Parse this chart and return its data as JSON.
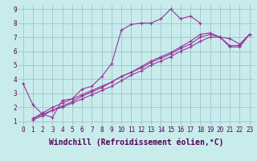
{
  "xlabel": "Windchill (Refroidissement éolien,°C)",
  "xlim": [
    -0.5,
    23.5
  ],
  "ylim": [
    0.7,
    9.3
  ],
  "xticks": [
    0,
    1,
    2,
    3,
    4,
    5,
    6,
    7,
    8,
    9,
    10,
    11,
    12,
    13,
    14,
    15,
    16,
    17,
    18,
    19,
    20,
    21,
    22,
    23
  ],
  "yticks": [
    1,
    2,
    3,
    4,
    5,
    6,
    7,
    8,
    9
  ],
  "bg_color": "#c8ecec",
  "line_color": "#993399",
  "grid_color": "#99bbcc",
  "series": [
    {
      "x": [
        0,
        1,
        2,
        3,
        4,
        5,
        6,
        7,
        8,
        9,
        10,
        11,
        12,
        13,
        14,
        15,
        16,
        17,
        18,
        19,
        20,
        21,
        22,
        23
      ],
      "y": [
        3.7,
        2.2,
        1.5,
        1.3,
        2.5,
        2.6,
        3.3,
        3.5,
        4.2,
        5.1,
        7.5,
        7.9,
        8.0,
        8.0,
        8.3,
        9.0,
        8.3,
        8.5,
        8.0,
        null,
        null,
        null,
        null,
        null
      ]
    },
    {
      "x": [
        1,
        2,
        3,
        4,
        5,
        6,
        7,
        8,
        9,
        10,
        11,
        12,
        13,
        14,
        15,
        16,
        17,
        18,
        19,
        20,
        21,
        22,
        23
      ],
      "y": [
        1.2,
        1.5,
        1.8,
        2.0,
        2.3,
        2.6,
        2.9,
        3.2,
        3.5,
        3.9,
        4.3,
        4.6,
        5.0,
        5.3,
        5.6,
        6.0,
        6.3,
        6.7,
        7.0,
        7.0,
        6.9,
        6.5,
        7.2
      ]
    },
    {
      "x": [
        1,
        2,
        3,
        4,
        5,
        6,
        7,
        8,
        9,
        10,
        11,
        12,
        13,
        14,
        15,
        16,
        17,
        18,
        19,
        20,
        21,
        22,
        23
      ],
      "y": [
        1.2,
        1.6,
        2.0,
        2.3,
        2.6,
        2.9,
        3.2,
        3.5,
        3.8,
        4.2,
        4.5,
        4.8,
        5.2,
        5.5,
        5.8,
        6.2,
        6.5,
        7.0,
        7.2,
        7.0,
        6.4,
        6.4,
        7.2
      ]
    },
    {
      "x": [
        1,
        2,
        3,
        4,
        5,
        6,
        7,
        8,
        9,
        10,
        11,
        12,
        13,
        14,
        15,
        16,
        17,
        18,
        19,
        20,
        21,
        22,
        23
      ],
      "y": [
        1.1,
        1.4,
        1.8,
        2.1,
        2.4,
        2.8,
        3.1,
        3.4,
        3.8,
        4.2,
        4.5,
        4.9,
        5.3,
        5.6,
        5.9,
        6.3,
        6.7,
        7.2,
        7.3,
        7.0,
        6.3,
        6.3,
        7.2
      ]
    }
  ],
  "font_family": "monospace",
  "tick_fontsize": 5.5,
  "label_fontsize": 7.0
}
